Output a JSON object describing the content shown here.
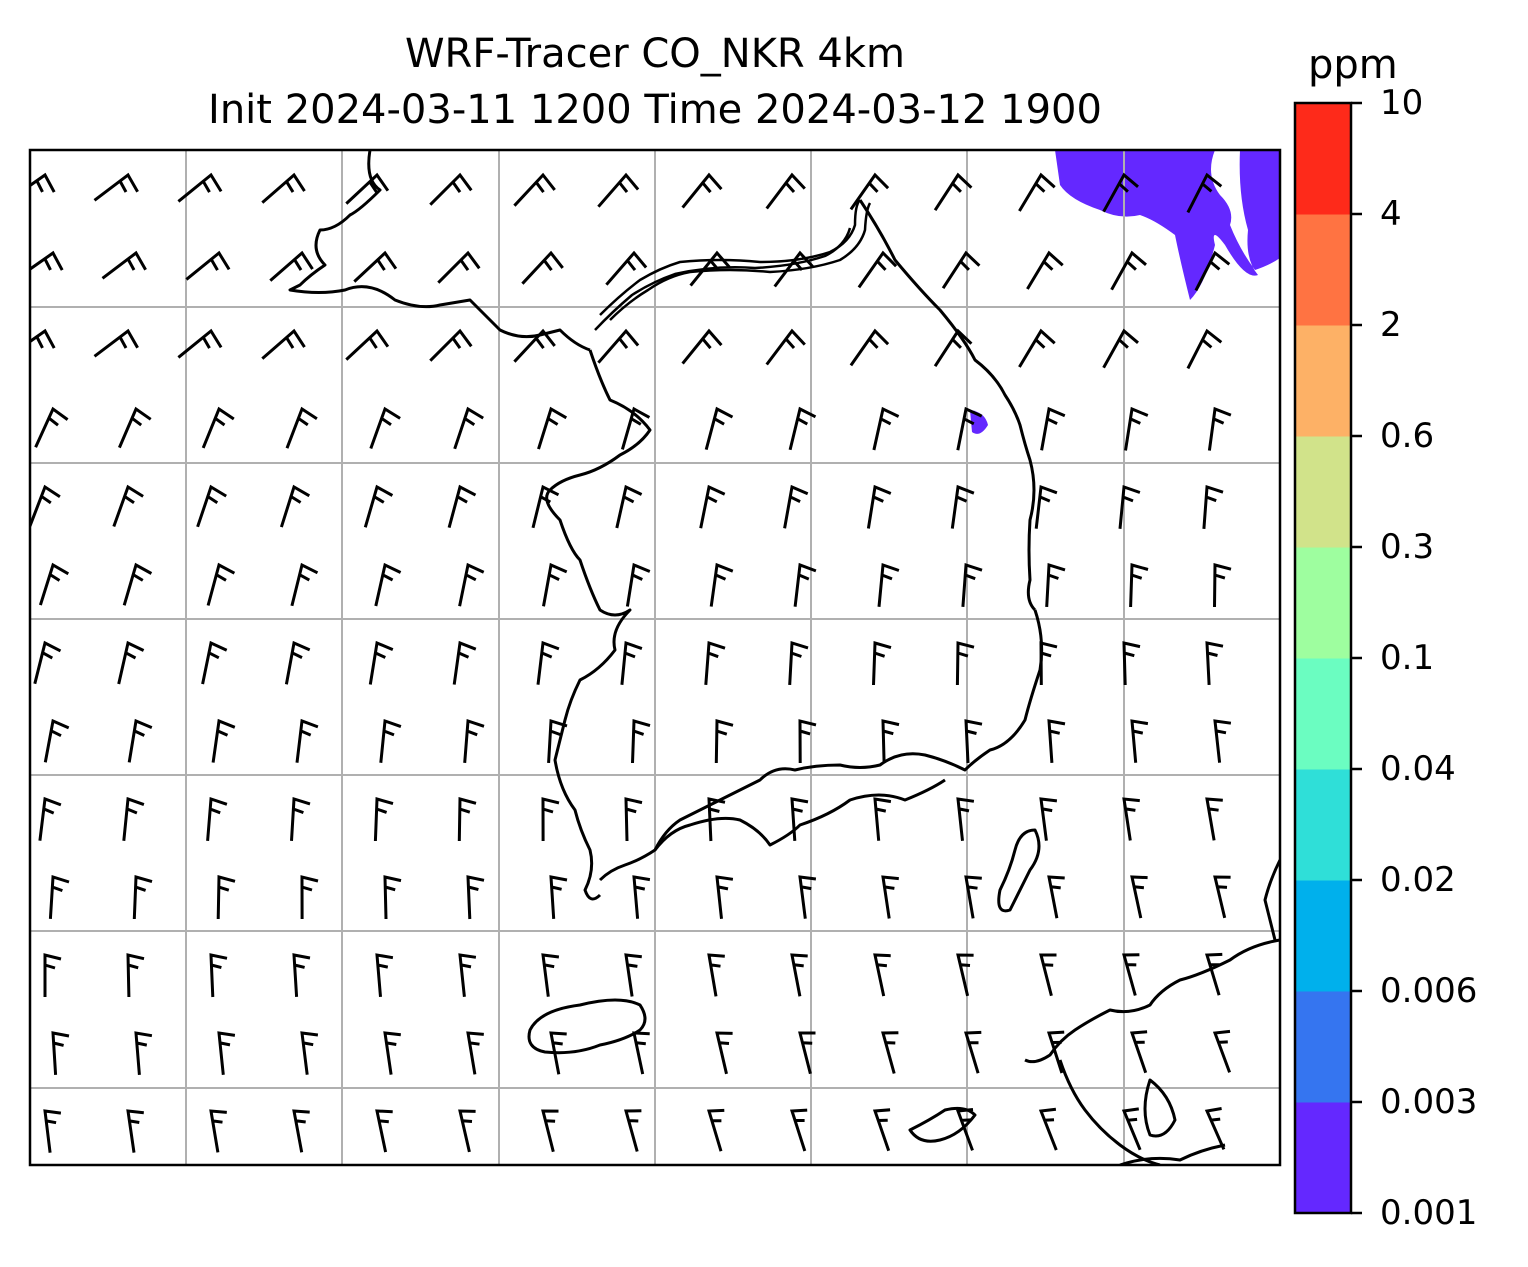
{
  "title": {
    "line1": "WRF-Tracer CO_NKR 4km",
    "line2": "Init 2024-03-11 1200 Time 2024-03-12 1900"
  },
  "colorbar": {
    "unit": "ppm",
    "levels": [
      "0.001",
      "0.003",
      "0.006",
      "0.02",
      "0.04",
      "0.1",
      "0.3",
      "0.6",
      "2",
      "4",
      "10"
    ],
    "colors": [
      "#6428ff",
      "#3575f0",
      "#00b0ec",
      "#2fdfd8",
      "#6bfdc1",
      "#9efe9f",
      "#d1e38a",
      "#fdb166",
      "#ff7342",
      "#fe2a1a"
    ]
  },
  "map": {
    "gridlines": true,
    "plume_color": "#6428ff",
    "barb_color": "#000000",
    "coast_color": "#000000"
  }
}
